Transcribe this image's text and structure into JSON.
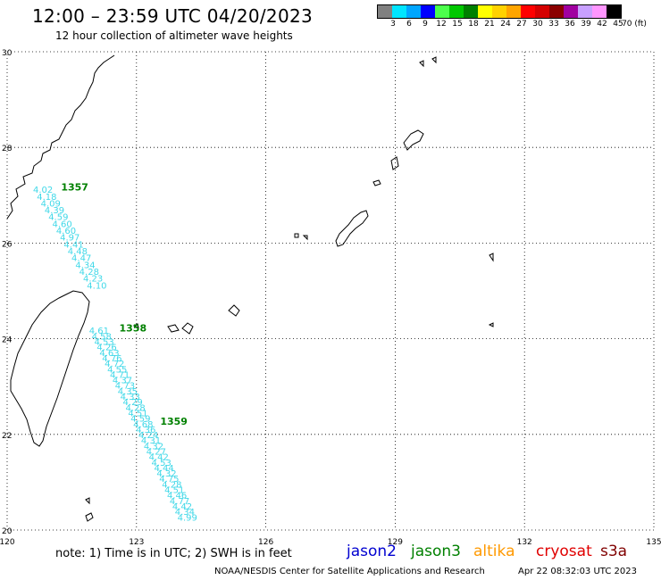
{
  "header": {
    "title": "12:00 – 23:59 UTC 04/20/2023",
    "subtitle": "12 hour collection of altimeter wave heights"
  },
  "colorbar": {
    "colors": [
      "#808080",
      "#00e5ff",
      "#00a6ff",
      "#0000ff",
      "#4cff4c",
      "#00c800",
      "#008000",
      "#ffff00",
      "#ffd200",
      "#ffa500",
      "#ff0000",
      "#d40000",
      "#8b0000",
      "#a000a0",
      "#c8a0ff",
      "#ff96ff",
      "#000000"
    ],
    "labels": [
      "3",
      "6",
      "9",
      "12",
      "15",
      "18",
      "21",
      "24",
      "27",
      "30",
      "33",
      "36",
      "39",
      "42",
      "45",
      "70 (ft)"
    ]
  },
  "map": {
    "lon_range": [
      120,
      135
    ],
    "lat_range": [
      20,
      30
    ],
    "x_ticks": [
      "120",
      "123",
      "126",
      "129",
      "132",
      "135"
    ],
    "y_ticks": [
      "30",
      "28",
      "26",
      "24",
      "22",
      "20"
    ],
    "grid": true
  },
  "track_labels": [
    {
      "text": "1357",
      "lon": 121.25,
      "lat": 27.1,
      "color": "#008000"
    },
    {
      "text": "1358",
      "lon": 122.6,
      "lat": 24.15,
      "color": "#008000"
    },
    {
      "text": "1359",
      "lon": 123.55,
      "lat": 22.2,
      "color": "#008000"
    }
  ],
  "tracks": [
    {
      "color": "#40d8e8",
      "start": {
        "lon": 120.6,
        "lat": 27.05
      },
      "end": {
        "lon": 121.85,
        "lat": 25.05
      },
      "values": [
        "4.02",
        "4.18",
        "4.09",
        "4.39",
        "4.59",
        "4.60",
        "4.60",
        "4.97",
        "4.41",
        "4.48",
        "4.47",
        "4.34",
        "4.28",
        "4.23",
        "4.10"
      ]
    },
    {
      "color": "#40d8e8",
      "start": {
        "lon": 121.9,
        "lat": 24.1
      },
      "end": {
        "lon": 123.95,
        "lat": 20.2
      },
      "values": [
        "4.61",
        "4.58",
        "4.53",
        "4.26",
        "4.63",
        "4.76",
        "4.72",
        "4.55",
        "4.71",
        "4.37",
        "4.73",
        "4.35",
        "4.33",
        "4.29",
        "4.28",
        "4.51",
        "4.59",
        "4.68",
        "4.36",
        "4.24",
        "4.31",
        "4.32",
        "4.27",
        "4.42",
        "4.53",
        "4.44",
        "4.32",
        "4.75",
        "4.28",
        "4.51",
        "4.46",
        "4.77",
        "4.42",
        "4.34",
        "4.99"
      ]
    }
  ],
  "footer": {
    "note": "note:  1) Time is in UTC;  2) SWH is in feet",
    "satellites": [
      {
        "name": "jason2",
        "color": "#0000d0"
      },
      {
        "name": "jason3",
        "color": "#008000"
      },
      {
        "name": "altika",
        "color": "#ff9900"
      },
      {
        "name": "cryosat",
        "color": "#e00000"
      },
      {
        "name": "s3a",
        "color": "#800000"
      }
    ],
    "org": "NOAA/NESDIS Center for Satellite Applications and Research",
    "timestamp": "Apr 22 08:32:03 UTC 2023"
  }
}
